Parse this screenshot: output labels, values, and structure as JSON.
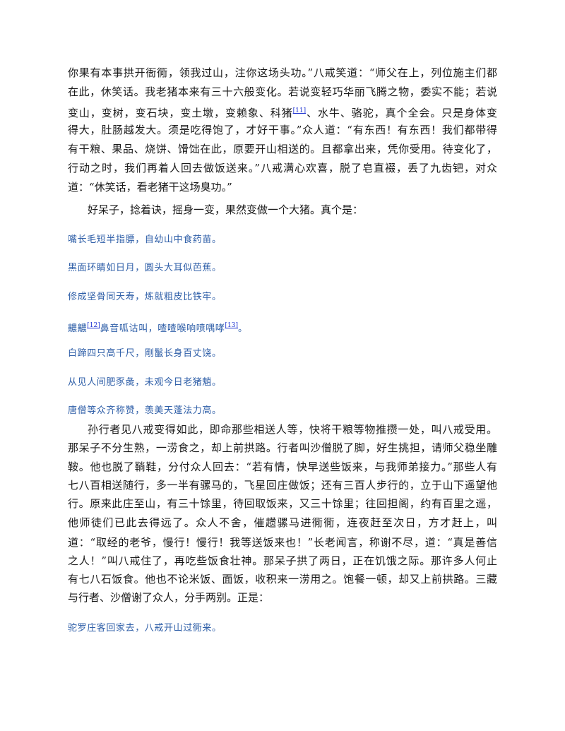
{
  "paragraphs": [
    {
      "indent": false,
      "lines": [
        [
          "你果有本事拱开衙衕，领我过山，注你这场头功。”八戒笑道：“师父在上，列位施主们都"
        ],
        [
          "在此，休笑话。我老猪本来有三十六般变化。若说变轻巧华丽飞腾之物，委实不能；若说"
        ],
        [
          "变山，变树，变石块，变土墩，变赖象、科猪",
          {
            "note": "[11]"
          },
          "、水牛、骆驼，真个全会。只是身体变"
        ],
        [
          "得大，肚肠越发大。须是吃得饱了，才好干事。”众人道：“有东西！有东西！我们都带得"
        ],
        [
          "有干粮、果品、烧饼、馉饳在此，原要开山相送的。且都拿出来，凭你受用。待变化了，"
        ],
        [
          "行动之时，我们再着人回去做饭送来。”八戒满心欢喜，脱了皂直裰，丢了九齿钯，对众"
        ],
        [
          "道：“休笑话，看老猪干这场臭功。”"
        ]
      ]
    },
    {
      "indent": true,
      "lines": [
        [
          "好呆子，捻着诀，摇身一变，果然变做一个大猪。真个是："
        ]
      ]
    },
    {
      "indent": true,
      "lines": [
        [
          "孙行者见八戒变得如此，即命那些相送人等，快将干粮等物推攒一处，叫八戒受用。"
        ],
        [
          "那呆子不分生熟，一涝食之，却上前拱路。行者叫沙僧脱了脚，好生挑担，请师父稳坐雕"
        ],
        [
          "鞍。他也脱了鞝鞋，分付众人回去：“若有情，快早送些饭来，与我师弟接力。”那些人有"
        ],
        [
          "七八百相送随行，多一半有骡马的，飞星回庄做饭；还有三百人步行的，立于山下遥望他"
        ],
        [
          "行。原来此庄至山，有三十馀里，待回取饭来，又三十馀里；往回担阁，约有百里之遥，"
        ],
        [
          "他师徒们已此去得远了。众人不舍，催趱骡马进衕衕，连夜赶至次日，方才赶上，叫"
        ],
        [
          "道：“取经的老爷，慢行！慢行！我等送饭来也！”长老闻言，称谢不尽，道：“真是善信"
        ],
        [
          "之人！”叫八戒住了，再吃些饭食壮神。那呆子拱了两日，正在饥饿之际。那许多人何止"
        ],
        [
          "有七八石饭食。他也不论米饭、面饭，收积来一涝用之。饱餐一顿，却又上前拱路。三藏"
        ],
        [
          "与行者、沙僧谢了众人，分手两别。正是："
        ]
      ]
    }
  ],
  "poems": [
    [
      [
        "嘴长毛短半指膘，自幼山中食药苗。"
      ],
      [
        "黑面环睛如日月，圆头大耳似芭蕉。"
      ],
      [
        "修成坚骨同天寿，炼就粗皮比铁牢。"
      ],
      [
        "齈齈",
        {
          "note": "[12]"
        },
        "鼻音呱诂叫，喳喳喉响喷喁哮",
        {
          "note": "[13]"
        },
        "。"
      ],
      [
        "白蹄四只高千尺，剛鬣长身百丈饶。"
      ],
      [
        "从见人间肥豕彘，未观今日老猪魈。"
      ],
      [
        "唐僧等众齐称赞，羡美天蓬法力高。"
      ]
    ],
    [
      [
        "驼罗庄客回家去，八戒开山过衕来。"
      ]
    ]
  ],
  "colors": {
    "text": "#1a1a1a",
    "poem": "#2f5fa8",
    "footnote": "#1a2fd0"
  }
}
